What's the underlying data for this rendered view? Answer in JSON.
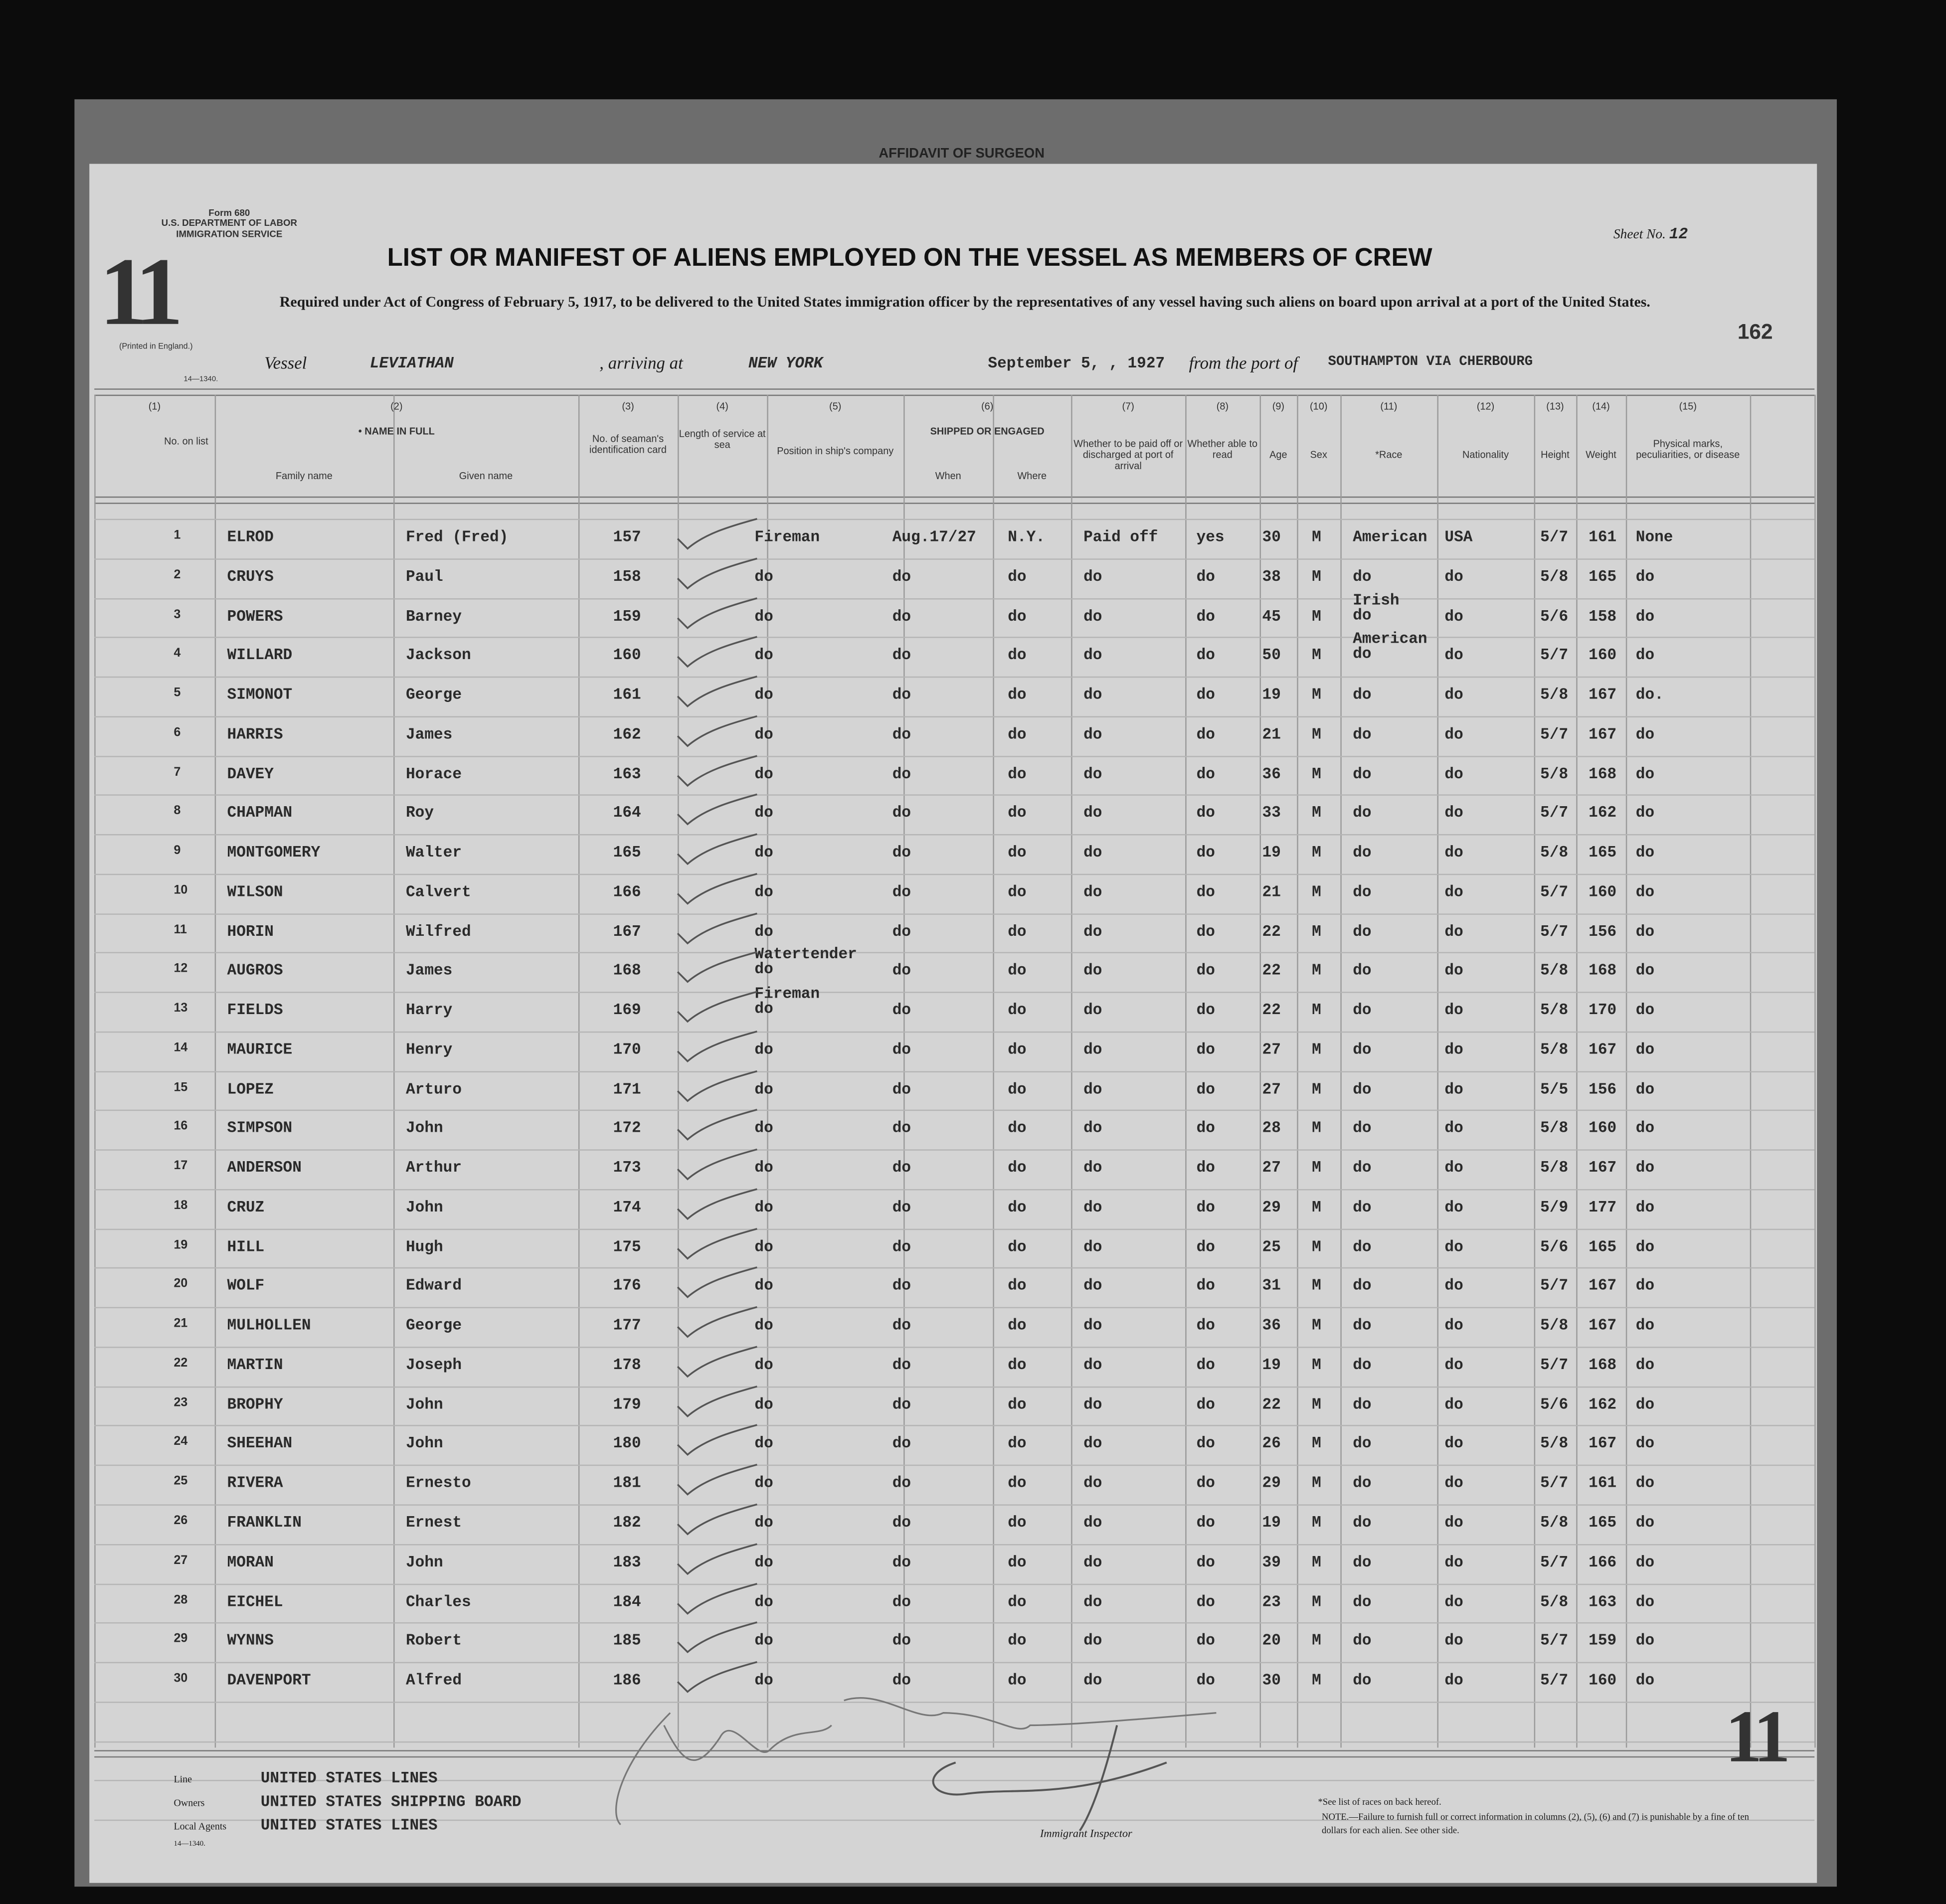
{
  "top_tab": "AFFIDAVIT OF SURGEON",
  "form": {
    "number": "Form 680",
    "dept": "U.S. DEPARTMENT OF LABOR",
    "service": "IMMIGRATION SERVICE",
    "printed": "(Printed in England.)",
    "code": "14—1340.",
    "big_number": "11"
  },
  "sheet": {
    "label": "Sheet No.",
    "value": "12"
  },
  "page_number": "162",
  "title": "LIST OR MANIFEST OF ALIENS EMPLOYED ON THE VESSEL AS MEMBERS OF CREW",
  "subtitle": "Required under Act of Congress of February 5, 1917, to be delivered to the United States immigration officer by the representatives of any vessel having such aliens on board upon arrival at a port of the United States.",
  "voyage": {
    "vessel_label": "Vessel",
    "vessel": "LEVIATHAN",
    "arriving_label": ", arriving at",
    "arriving": "NEW YORK",
    "date": "September 5, , 19",
    "year": "27",
    "from_label": "from the port of",
    "from": "SOUTHAMPTON VIA CHERBOURG"
  },
  "columns": {
    "nums": [
      "(1)",
      "(2)",
      "(3)",
      "(4)",
      "(5)",
      "(6)",
      "(7)",
      "(8)",
      "(9)",
      "(10)",
      "(11)",
      "(12)",
      "(13)",
      "(14)",
      "(15)"
    ],
    "no": "No. on list",
    "name": "• NAME IN FULL",
    "family": "Family name",
    "given": "Given name",
    "card": "No. of seaman's identification card",
    "length": "Length of service at sea",
    "position": "Position in ship's company",
    "shipped": "SHIPPED OR ENGAGED",
    "when": "When",
    "where": "Where",
    "paid": "Whether to be paid off or discharged at port of arrival",
    "read": "Whether able to read",
    "age": "Age",
    "sex": "Sex",
    "race": "*Race",
    "nationality": "Nationality",
    "height": "Height",
    "weight": "Weight",
    "marks": "Physical marks, peculiarities, or disease"
  },
  "rows": [
    [
      "1",
      "ELROD",
      "Fred (Fred)",
      "157",
      "Fireman",
      "Aug.17/27",
      "N.Y.",
      "Paid off",
      "yes",
      "30",
      "M",
      "American",
      "USA",
      "5/7",
      "161",
      "None"
    ],
    [
      "2",
      "CRUYS",
      "Paul",
      "158",
      "do",
      "do",
      "do",
      "do",
      "do",
      "38",
      "M",
      "do",
      "do",
      "5/8",
      "165",
      "do"
    ],
    [
      "3",
      "POWERS",
      "Barney",
      "159",
      "do",
      "do",
      "do",
      "do",
      "do",
      "45",
      "M",
      "Irish do",
      "do",
      "5/6",
      "158",
      "do"
    ],
    [
      "4",
      "WILLARD",
      "Jackson",
      "160",
      "do",
      "do",
      "do",
      "do",
      "do",
      "50",
      "M",
      "American do",
      "do",
      "5/7",
      "160",
      "do"
    ],
    [
      "5",
      "SIMONOT",
      "George",
      "161",
      "do",
      "do",
      "do",
      "do",
      "do",
      "19",
      "M",
      "do",
      "do",
      "5/8",
      "167",
      "do."
    ],
    [
      "6",
      "HARRIS",
      "James",
      "162",
      "do",
      "do",
      "do",
      "do",
      "do",
      "21",
      "M",
      "do",
      "do",
      "5/7",
      "167",
      "do"
    ],
    [
      "7",
      "DAVEY",
      "Horace",
      "163",
      "do",
      "do",
      "do",
      "do",
      "do",
      "36",
      "M",
      "do",
      "do",
      "5/8",
      "168",
      "do"
    ],
    [
      "8",
      "CHAPMAN",
      "Roy",
      "164",
      "do",
      "do",
      "do",
      "do",
      "do",
      "33",
      "M",
      "do",
      "do",
      "5/7",
      "162",
      "do"
    ],
    [
      "9",
      "MONTGOMERY",
      "Walter",
      "165",
      "do",
      "do",
      "do",
      "do",
      "do",
      "19",
      "M",
      "do",
      "do",
      "5/8",
      "165",
      "do"
    ],
    [
      "10",
      "WILSON",
      "Calvert",
      "166",
      "do",
      "do",
      "do",
      "do",
      "do",
      "21",
      "M",
      "do",
      "do",
      "5/7",
      "160",
      "do"
    ],
    [
      "11",
      "HORIN",
      "Wilfred",
      "167",
      "do",
      "do",
      "do",
      "do",
      "do",
      "22",
      "M",
      "do",
      "do",
      "5/7",
      "156",
      "do"
    ],
    [
      "12",
      "AUGROS",
      "James",
      "168",
      "Watertender do",
      "do",
      "do",
      "do",
      "do",
      "22",
      "M",
      "do",
      "do",
      "5/8",
      "168",
      "do"
    ],
    [
      "13",
      "FIELDS",
      "Harry",
      "169",
      "Fireman do",
      "do",
      "do",
      "do",
      "do",
      "22",
      "M",
      "do",
      "do",
      "5/8",
      "170",
      "do"
    ],
    [
      "14",
      "MAURICE",
      "Henry",
      "170",
      "do",
      "do",
      "do",
      "do",
      "do",
      "27",
      "M",
      "do",
      "do",
      "5/8",
      "167",
      "do"
    ],
    [
      "15",
      "LOPEZ",
      "Arturo",
      "171",
      "do",
      "do",
      "do",
      "do",
      "do",
      "27",
      "M",
      "do",
      "do",
      "5/5",
      "156",
      "do"
    ],
    [
      "16",
      "SIMPSON",
      "John",
      "172",
      "do",
      "do",
      "do",
      "do",
      "do",
      "28",
      "M",
      "do",
      "do",
      "5/8",
      "160",
      "do"
    ],
    [
      "17",
      "ANDERSON",
      "Arthur",
      "173",
      "do",
      "do",
      "do",
      "do",
      "do",
      "27",
      "M",
      "do",
      "do",
      "5/8",
      "167",
      "do"
    ],
    [
      "18",
      "CRUZ",
      "John",
      "174",
      "do",
      "do",
      "do",
      "do",
      "do",
      "29",
      "M",
      "do",
      "do",
      "5/9",
      "177",
      "do"
    ],
    [
      "19",
      "HILL",
      "Hugh",
      "175",
      "do",
      "do",
      "do",
      "do",
      "do",
      "25",
      "M",
      "do",
      "do",
      "5/6",
      "165",
      "do"
    ],
    [
      "20",
      "WOLF",
      "Edward",
      "176",
      "do",
      "do",
      "do",
      "do",
      "do",
      "31",
      "M",
      "do",
      "do",
      "5/7",
      "167",
      "do"
    ],
    [
      "21",
      "MULHOLLEN",
      "George",
      "177",
      "do",
      "do",
      "do",
      "do",
      "do",
      "36",
      "M",
      "do",
      "do",
      "5/8",
      "167",
      "do"
    ],
    [
      "22",
      "MARTIN",
      "Joseph",
      "178",
      "do",
      "do",
      "do",
      "do",
      "do",
      "19",
      "M",
      "do",
      "do",
      "5/7",
      "168",
      "do"
    ],
    [
      "23",
      "BROPHY",
      "John",
      "179",
      "do",
      "do",
      "do",
      "do",
      "do",
      "22",
      "M",
      "do",
      "do",
      "5/6",
      "162",
      "do"
    ],
    [
      "24",
      "SHEEHAN",
      "John",
      "180",
      "do",
      "do",
      "do",
      "do",
      "do",
      "26",
      "M",
      "do",
      "do",
      "5/8",
      "167",
      "do"
    ],
    [
      "25",
      "RIVERA",
      "Ernesto",
      "181",
      "do",
      "do",
      "do",
      "do",
      "do",
      "29",
      "M",
      "do",
      "do",
      "5/7",
      "161",
      "do"
    ],
    [
      "26",
      "FRANKLIN",
      "Ernest",
      "182",
      "do",
      "do",
      "do",
      "do",
      "do",
      "19",
      "M",
      "do",
      "do",
      "5/8",
      "165",
      "do"
    ],
    [
      "27",
      "MORAN",
      "John",
      "183",
      "do",
      "do",
      "do",
      "do",
      "do",
      "39",
      "M",
      "do",
      "do",
      "5/7",
      "166",
      "do"
    ],
    [
      "28",
      "EICHEL",
      "Charles",
      "184",
      "do",
      "do",
      "do",
      "do",
      "do",
      "23",
      "M",
      "do",
      "do",
      "5/8",
      "163",
      "do"
    ],
    [
      "29",
      "WYNNS",
      "Robert",
      "185",
      "do",
      "do",
      "do",
      "do",
      "do",
      "20",
      "M",
      "do",
      "do",
      "5/7",
      "159",
      "do"
    ],
    [
      "30",
      "DAVENPORT",
      "Alfred",
      "186",
      "do",
      "do",
      "do",
      "do",
      "do",
      "30",
      "M",
      "do",
      "do",
      "5/7",
      "160",
      "do"
    ]
  ],
  "footer": {
    "line_label": "Line",
    "line": "UNITED STATES LINES",
    "owners_label": "Owners",
    "owners": "UNITED STATES SHIPPING BOARD",
    "agents_label": "Local Agents",
    "agents": "UNITED STATES LINES",
    "code": "14—1340.",
    "inspector_label": "Immigrant Inspector",
    "race_note": "*See list of races on back hereof.",
    "note": "NOTE.—Failure to furnish full or correct information in columns (2), (5), (6) and (7) is punishable by a fine of ten dollars for each alien. See other side.",
    "big_number": "11"
  }
}
